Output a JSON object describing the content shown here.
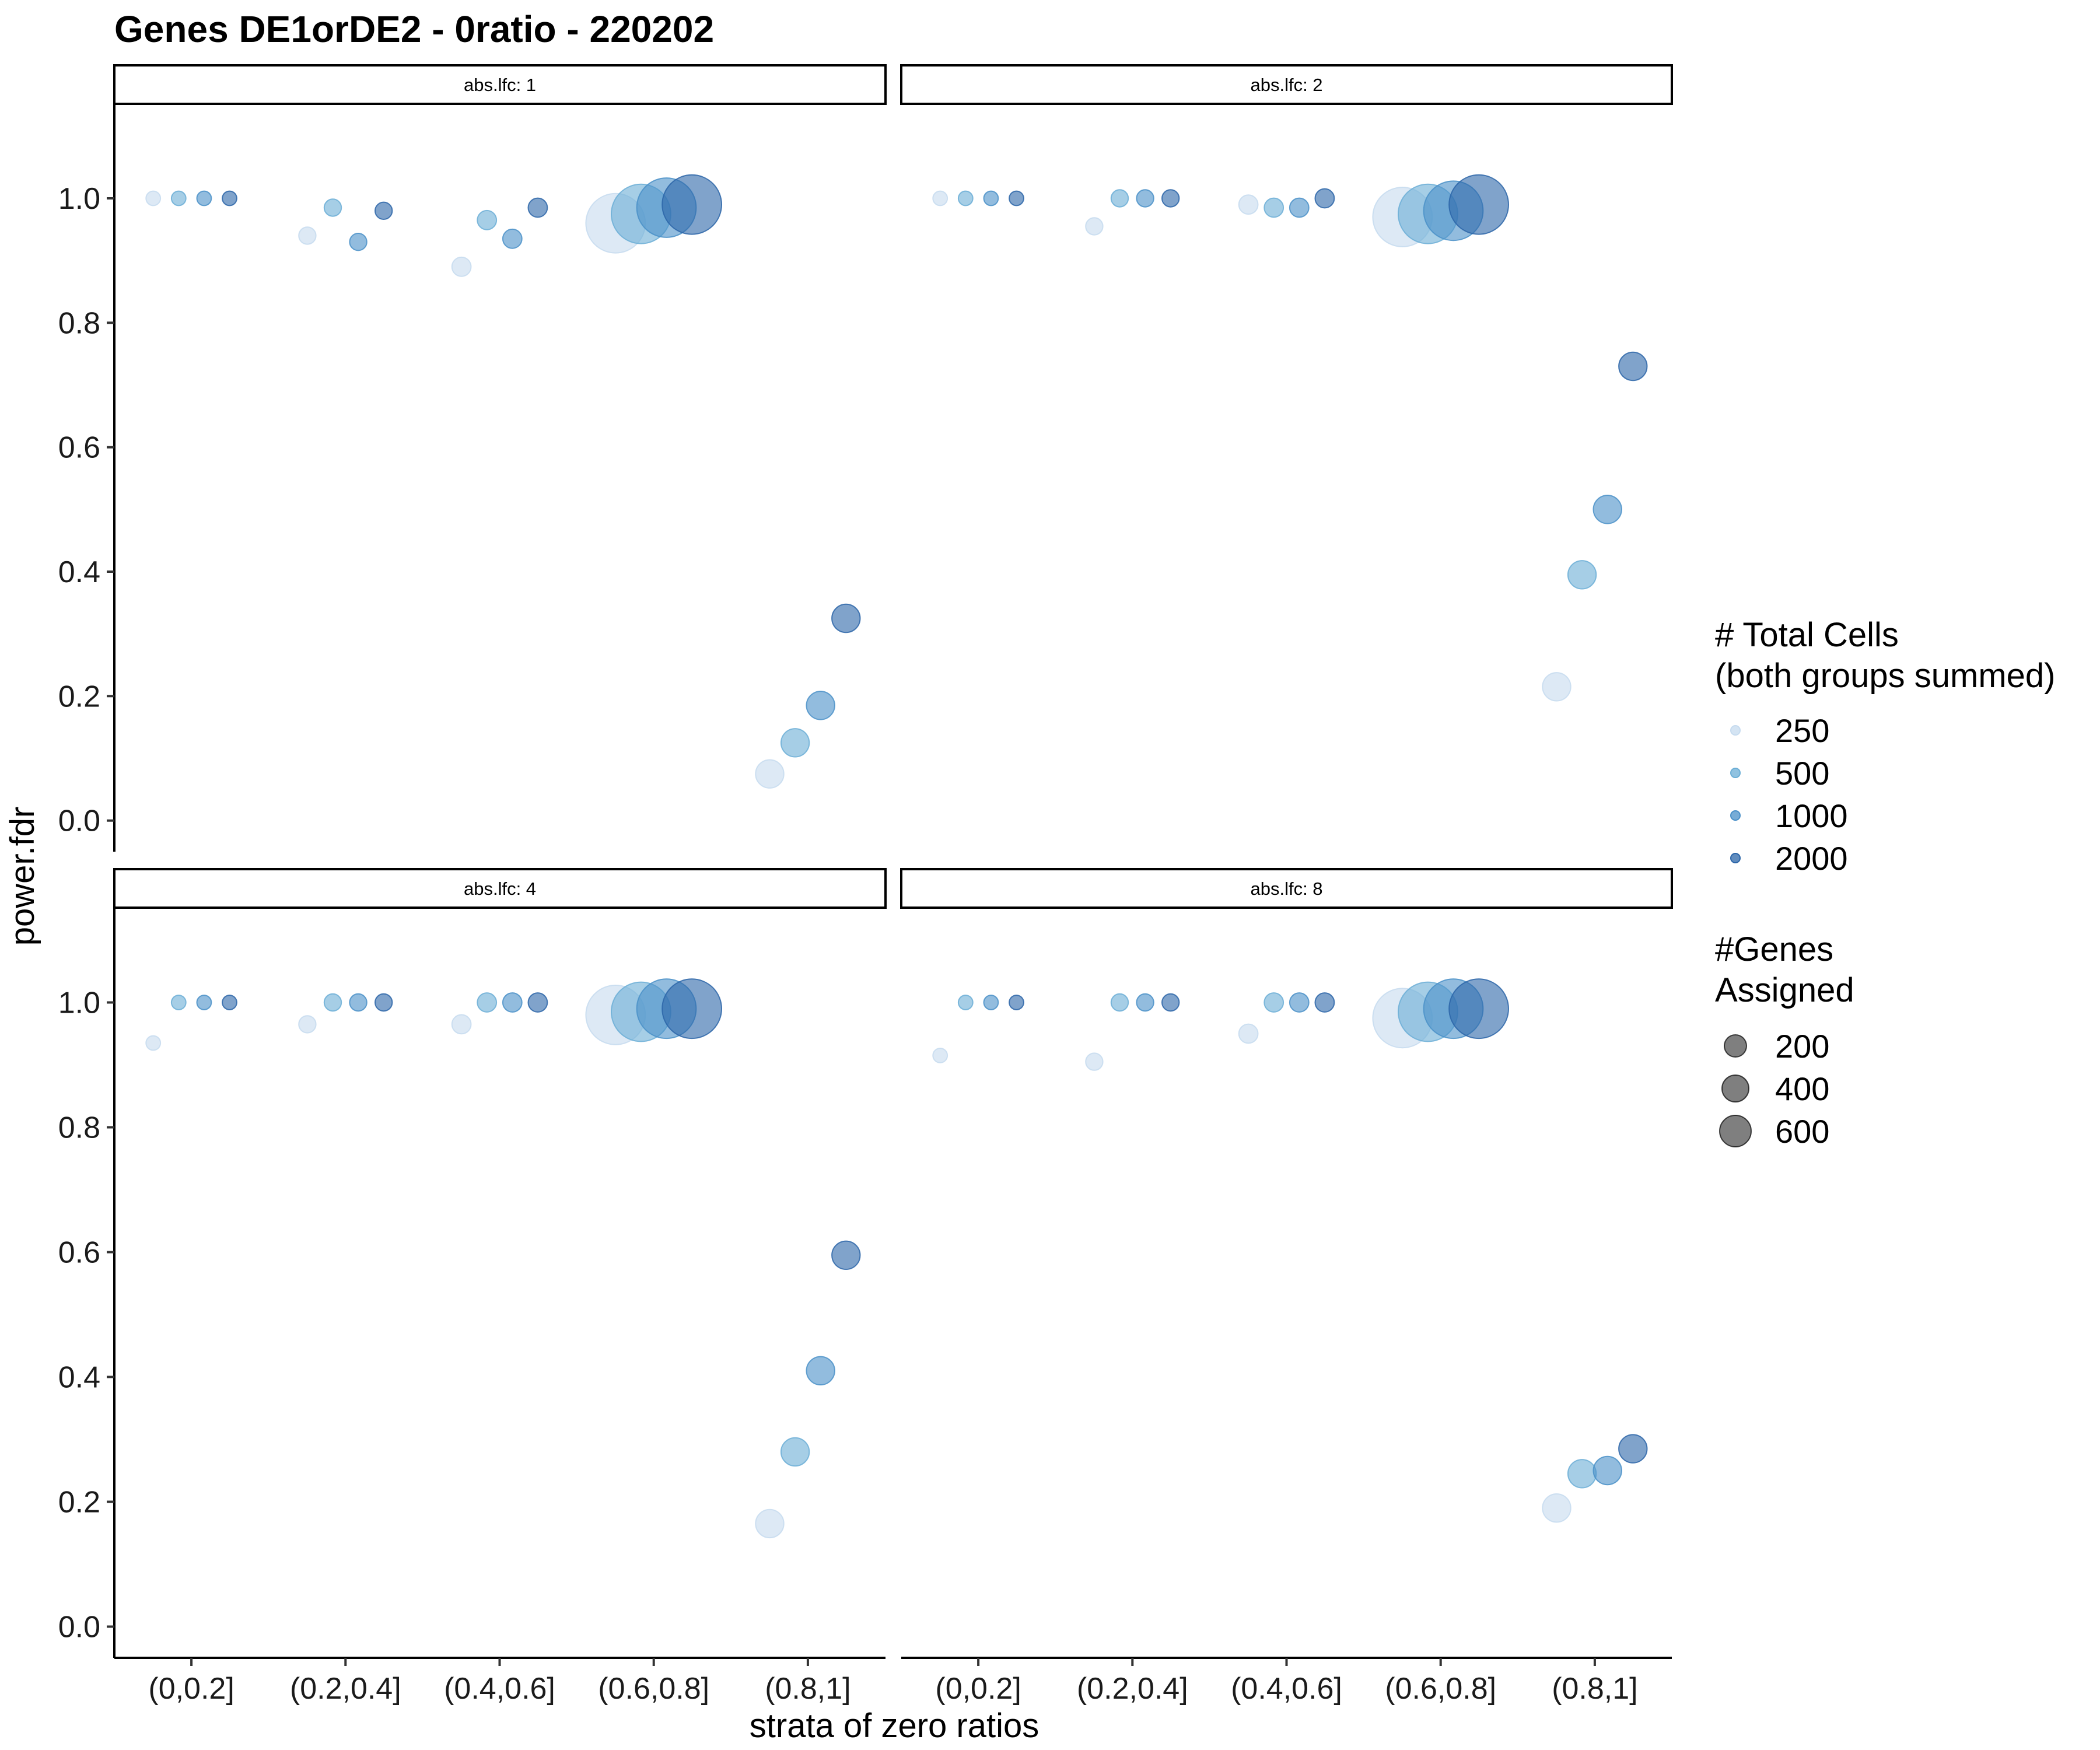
{
  "title": "Genes DE1orDE2 - 0ratio - 220202",
  "colors": {
    "250": "#c6dbef",
    "500": "#6baed6",
    "1000": "#4a90c8",
    "2000": "#2b65a8"
  },
  "chart_data": {
    "type": "scatter",
    "title": "Genes DE1orDE2 - 0ratio - 220202",
    "xlabel": "strata of zero ratios",
    "ylabel": "power.fdr",
    "categories": [
      "(0,0.2]",
      "(0.2,0.4]",
      "(0.4,0.6]",
      "(0.6,0.8]",
      "(0.8,1]"
    ],
    "ylim": [
      -0.05,
      1.15
    ],
    "yticks": [
      "0.0",
      "0.2",
      "0.4",
      "0.6",
      "0.8",
      "1.0"
    ],
    "grid": false,
    "legend_position": "right",
    "legend": {
      "color": {
        "title": [
          "# Total Cells",
          "(both groups summed)"
        ],
        "values": [
          "250",
          "500",
          "1000",
          "2000"
        ]
      },
      "size": {
        "title": [
          "#Genes",
          "Assigned"
        ],
        "values": [
          "200",
          "400",
          "600"
        ]
      }
    },
    "panels": [
      {
        "strip": "abs.lfc: 1",
        "points": [
          {
            "x": "(0,0.2]",
            "cells": 250,
            "y": 1.0,
            "genes": 10
          },
          {
            "x": "(0,0.2]",
            "cells": 500,
            "y": 1.0,
            "genes": 10
          },
          {
            "x": "(0,0.2]",
            "cells": 1000,
            "y": 1.0,
            "genes": 10
          },
          {
            "x": "(0,0.2]",
            "cells": 2000,
            "y": 1.0,
            "genes": 10
          },
          {
            "x": "(0.2,0.4]",
            "cells": 250,
            "y": 0.94,
            "genes": 20
          },
          {
            "x": "(0.2,0.4]",
            "cells": 500,
            "y": 0.985,
            "genes": 20
          },
          {
            "x": "(0.2,0.4]",
            "cells": 1000,
            "y": 0.93,
            "genes": 20
          },
          {
            "x": "(0.2,0.4]",
            "cells": 2000,
            "y": 0.98,
            "genes": 20
          },
          {
            "x": "(0.4,0.6]",
            "cells": 250,
            "y": 0.89,
            "genes": 30
          },
          {
            "x": "(0.4,0.6]",
            "cells": 500,
            "y": 0.965,
            "genes": 30
          },
          {
            "x": "(0.4,0.6]",
            "cells": 1000,
            "y": 0.935,
            "genes": 30
          },
          {
            "x": "(0.4,0.6]",
            "cells": 2000,
            "y": 0.985,
            "genes": 30
          },
          {
            "x": "(0.6,0.8]",
            "cells": 250,
            "y": 0.96,
            "genes": 650
          },
          {
            "x": "(0.6,0.8]",
            "cells": 500,
            "y": 0.975,
            "genes": 650
          },
          {
            "x": "(0.6,0.8]",
            "cells": 1000,
            "y": 0.985,
            "genes": 650
          },
          {
            "x": "(0.6,0.8]",
            "cells": 2000,
            "y": 0.99,
            "genes": 650
          },
          {
            "x": "(0.8,1]",
            "cells": 250,
            "y": 0.075,
            "genes": 100
          },
          {
            "x": "(0.8,1]",
            "cells": 500,
            "y": 0.125,
            "genes": 100
          },
          {
            "x": "(0.8,1]",
            "cells": 1000,
            "y": 0.185,
            "genes": 100
          },
          {
            "x": "(0.8,1]",
            "cells": 2000,
            "y": 0.325,
            "genes": 100
          }
        ]
      },
      {
        "strip": "abs.lfc: 2",
        "points": [
          {
            "x": "(0,0.2]",
            "cells": 250,
            "y": 1.0,
            "genes": 10
          },
          {
            "x": "(0,0.2]",
            "cells": 500,
            "y": 1.0,
            "genes": 10
          },
          {
            "x": "(0,0.2]",
            "cells": 1000,
            "y": 1.0,
            "genes": 10
          },
          {
            "x": "(0,0.2]",
            "cells": 2000,
            "y": 1.0,
            "genes": 10
          },
          {
            "x": "(0.2,0.4]",
            "cells": 250,
            "y": 0.955,
            "genes": 20
          },
          {
            "x": "(0.2,0.4]",
            "cells": 500,
            "y": 1.0,
            "genes": 20
          },
          {
            "x": "(0.2,0.4]",
            "cells": 1000,
            "y": 1.0,
            "genes": 20
          },
          {
            "x": "(0.2,0.4]",
            "cells": 2000,
            "y": 1.0,
            "genes": 20
          },
          {
            "x": "(0.4,0.6]",
            "cells": 250,
            "y": 0.99,
            "genes": 30
          },
          {
            "x": "(0.4,0.6]",
            "cells": 500,
            "y": 0.985,
            "genes": 30
          },
          {
            "x": "(0.4,0.6]",
            "cells": 1000,
            "y": 0.985,
            "genes": 30
          },
          {
            "x": "(0.4,0.6]",
            "cells": 2000,
            "y": 1.0,
            "genes": 30
          },
          {
            "x": "(0.6,0.8]",
            "cells": 250,
            "y": 0.97,
            "genes": 650
          },
          {
            "x": "(0.6,0.8]",
            "cells": 500,
            "y": 0.975,
            "genes": 650
          },
          {
            "x": "(0.6,0.8]",
            "cells": 1000,
            "y": 0.98,
            "genes": 650
          },
          {
            "x": "(0.6,0.8]",
            "cells": 2000,
            "y": 0.99,
            "genes": 650
          },
          {
            "x": "(0.8,1]",
            "cells": 250,
            "y": 0.215,
            "genes": 100
          },
          {
            "x": "(0.8,1]",
            "cells": 500,
            "y": 0.395,
            "genes": 100
          },
          {
            "x": "(0.8,1]",
            "cells": 1000,
            "y": 0.5,
            "genes": 100
          },
          {
            "x": "(0.8,1]",
            "cells": 2000,
            "y": 0.73,
            "genes": 100
          }
        ]
      },
      {
        "strip": "abs.lfc: 4",
        "points": [
          {
            "x": "(0,0.2]",
            "cells": 250,
            "y": 0.935,
            "genes": 10
          },
          {
            "x": "(0,0.2]",
            "cells": 500,
            "y": 1.0,
            "genes": 10
          },
          {
            "x": "(0,0.2]",
            "cells": 1000,
            "y": 1.0,
            "genes": 10
          },
          {
            "x": "(0,0.2]",
            "cells": 2000,
            "y": 1.0,
            "genes": 10
          },
          {
            "x": "(0.2,0.4]",
            "cells": 250,
            "y": 0.965,
            "genes": 20
          },
          {
            "x": "(0.2,0.4]",
            "cells": 500,
            "y": 1.0,
            "genes": 20
          },
          {
            "x": "(0.2,0.4]",
            "cells": 1000,
            "y": 1.0,
            "genes": 20
          },
          {
            "x": "(0.2,0.4]",
            "cells": 2000,
            "y": 1.0,
            "genes": 20
          },
          {
            "x": "(0.4,0.6]",
            "cells": 250,
            "y": 0.965,
            "genes": 30
          },
          {
            "x": "(0.4,0.6]",
            "cells": 500,
            "y": 1.0,
            "genes": 30
          },
          {
            "x": "(0.4,0.6]",
            "cells": 1000,
            "y": 1.0,
            "genes": 30
          },
          {
            "x": "(0.4,0.6]",
            "cells": 2000,
            "y": 1.0,
            "genes": 30
          },
          {
            "x": "(0.6,0.8]",
            "cells": 250,
            "y": 0.98,
            "genes": 650
          },
          {
            "x": "(0.6,0.8]",
            "cells": 500,
            "y": 0.985,
            "genes": 650
          },
          {
            "x": "(0.6,0.8]",
            "cells": 1000,
            "y": 0.99,
            "genes": 650
          },
          {
            "x": "(0.6,0.8]",
            "cells": 2000,
            "y": 0.99,
            "genes": 650
          },
          {
            "x": "(0.8,1]",
            "cells": 250,
            "y": 0.165,
            "genes": 100
          },
          {
            "x": "(0.8,1]",
            "cells": 500,
            "y": 0.28,
            "genes": 100
          },
          {
            "x": "(0.8,1]",
            "cells": 1000,
            "y": 0.41,
            "genes": 100
          },
          {
            "x": "(0.8,1]",
            "cells": 2000,
            "y": 0.595,
            "genes": 100
          }
        ]
      },
      {
        "strip": "abs.lfc: 8",
        "points": [
          {
            "x": "(0,0.2]",
            "cells": 250,
            "y": 0.915,
            "genes": 10
          },
          {
            "x": "(0,0.2]",
            "cells": 500,
            "y": 1.0,
            "genes": 10
          },
          {
            "x": "(0,0.2]",
            "cells": 1000,
            "y": 1.0,
            "genes": 10
          },
          {
            "x": "(0,0.2]",
            "cells": 2000,
            "y": 1.0,
            "genes": 10
          },
          {
            "x": "(0.2,0.4]",
            "cells": 250,
            "y": 0.905,
            "genes": 20
          },
          {
            "x": "(0.2,0.4]",
            "cells": 500,
            "y": 1.0,
            "genes": 20
          },
          {
            "x": "(0.2,0.4]",
            "cells": 1000,
            "y": 1.0,
            "genes": 20
          },
          {
            "x": "(0.2,0.4]",
            "cells": 2000,
            "y": 1.0,
            "genes": 20
          },
          {
            "x": "(0.4,0.6]",
            "cells": 250,
            "y": 0.95,
            "genes": 30
          },
          {
            "x": "(0.4,0.6]",
            "cells": 500,
            "y": 1.0,
            "genes": 30
          },
          {
            "x": "(0.4,0.6]",
            "cells": 1000,
            "y": 1.0,
            "genes": 30
          },
          {
            "x": "(0.4,0.6]",
            "cells": 2000,
            "y": 1.0,
            "genes": 30
          },
          {
            "x": "(0.6,0.8]",
            "cells": 250,
            "y": 0.975,
            "genes": 650
          },
          {
            "x": "(0.6,0.8]",
            "cells": 500,
            "y": 0.985,
            "genes": 650
          },
          {
            "x": "(0.6,0.8]",
            "cells": 1000,
            "y": 0.99,
            "genes": 650
          },
          {
            "x": "(0.6,0.8]",
            "cells": 2000,
            "y": 0.99,
            "genes": 650
          },
          {
            "x": "(0.8,1]",
            "cells": 250,
            "y": 0.19,
            "genes": 100
          },
          {
            "x": "(0.8,1]",
            "cells": 500,
            "y": 0.245,
            "genes": 100
          },
          {
            "x": "(0.8,1]",
            "cells": 1000,
            "y": 0.25,
            "genes": 100
          },
          {
            "x": "(0.8,1]",
            "cells": 2000,
            "y": 0.285,
            "genes": 100
          }
        ]
      }
    ]
  }
}
